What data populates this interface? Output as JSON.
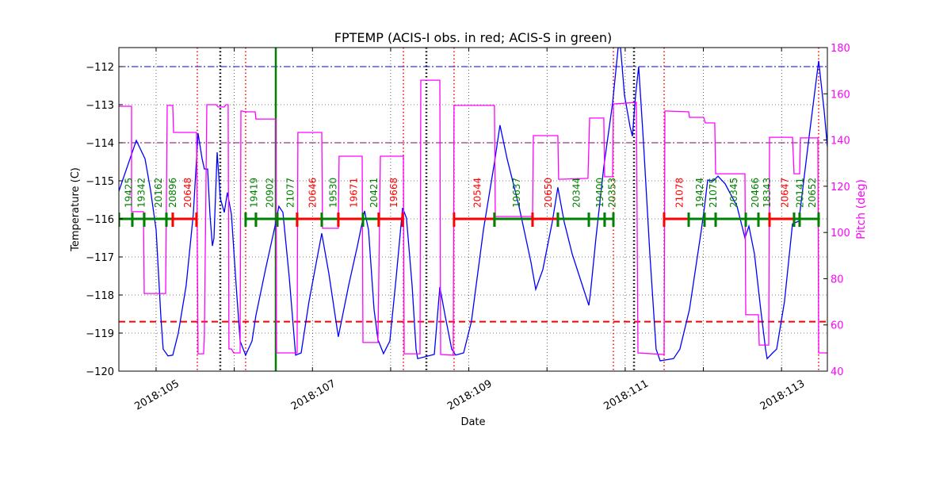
{
  "chart_data": {
    "type": "line",
    "title": "FPTEMP (ACIS-I obs. in red; ACIS-S in green)",
    "xlabel": "Date",
    "ylabel": "Temperature (C)",
    "y2label": "Pitch (deg)",
    "xlim": [
      104.524,
      113.586
    ],
    "ylim": [
      -120,
      -111.5
    ],
    "y2lim": [
      40,
      180
    ],
    "grid": true,
    "x_ticks": [
      105,
      106,
      107,
      108,
      109,
      110,
      111,
      112,
      113
    ],
    "x_tick_labels": [
      {
        "value": 105,
        "label": "2018:105"
      },
      {
        "value": 107,
        "label": "2018:107"
      },
      {
        "value": 109,
        "label": "2018:109"
      },
      {
        "value": 111,
        "label": "2018:111"
      },
      {
        "value": 113,
        "label": "2018:113"
      }
    ],
    "y_ticks": [
      "-120",
      "-119",
      "-118",
      "-117",
      "-116",
      "-115",
      "-114",
      "-113",
      "-112"
    ],
    "y2_ticks": [
      "40",
      "60",
      "80",
      "100",
      "120",
      "140",
      "160",
      "180"
    ],
    "colors": {
      "temperature": "#0000ff",
      "pitch": "#ff00ff",
      "acis_i": "#ff0000",
      "acis_s": "#008000",
      "y2_axis": "#ff00ff"
    },
    "hlines": [
      {
        "y": -112,
        "color": "#0000ff",
        "style": "dashdot"
      },
      {
        "y": -114,
        "color": "#800080",
        "style": "dashdot"
      },
      {
        "y": -118.7,
        "color": "#ff0000",
        "style": "dashed"
      }
    ],
    "vlines": [
      {
        "x": 105.527,
        "color": "#ff0000",
        "style": "dotted"
      },
      {
        "x": 106.145,
        "color": "#ff0000",
        "style": "dotted"
      },
      {
        "x": 108.163,
        "color": "#ff0000",
        "style": "dotted"
      },
      {
        "x": 108.811,
        "color": "#ff0000",
        "style": "dotted"
      },
      {
        "x": 110.849,
        "color": "#ff0000",
        "style": "dotted"
      },
      {
        "x": 111.498,
        "color": "#ff0000",
        "style": "dotted"
      },
      {
        "x": 113.474,
        "color": "#ff0000",
        "style": "dotted"
      },
      {
        "x": 105.821,
        "color": "#000000",
        "style": "dotted"
      },
      {
        "x": 108.457,
        "color": "#000000",
        "style": "dotted"
      },
      {
        "x": 111.113,
        "color": "#000000",
        "style": "dotted"
      },
      {
        "x": 106.531,
        "color": "#008000",
        "style": "solid"
      }
    ],
    "obs_level": -116,
    "observations": [
      {
        "obsid": "19425",
        "inst": "ACIS-S",
        "start": 104.524,
        "stop": 104.696
      },
      {
        "obsid": "19342",
        "inst": "ACIS-S",
        "start": 104.696,
        "stop": 104.848
      },
      {
        "obsid": "20162",
        "inst": "ACIS-S",
        "start": 104.848,
        "stop": 105.132
      },
      {
        "obsid": "20896",
        "inst": "ACIS-S",
        "start": 105.132,
        "stop": 105.213
      },
      {
        "obsid": "20648",
        "inst": "ACIS-I",
        "start": 105.213,
        "stop": 105.517
      },
      {
        "obsid": "19419",
        "inst": "ACIS-S",
        "start": 106.145,
        "stop": 106.277
      },
      {
        "obsid": "20902",
        "inst": "ACIS-S",
        "start": 106.277,
        "stop": 106.551
      },
      {
        "obsid": "21077",
        "inst": "ACIS-S",
        "start": 106.551,
        "stop": 106.804
      },
      {
        "obsid": "20646",
        "inst": "ACIS-I",
        "start": 106.804,
        "stop": 107.119
      },
      {
        "obsid": "19530",
        "inst": "ACIS-S",
        "start": 107.119,
        "stop": 107.331
      },
      {
        "obsid": "19671",
        "inst": "ACIS-I",
        "start": 107.331,
        "stop": 107.646
      },
      {
        "obsid": "20421",
        "inst": "ACIS-S",
        "start": 107.646,
        "stop": 107.848
      },
      {
        "obsid": "19668",
        "inst": "ACIS-I",
        "start": 107.848,
        "stop": 108.153
      },
      {
        "obsid": "20544",
        "inst": "ACIS-I",
        "start": 108.811,
        "stop": 109.328
      },
      {
        "obsid": "19637",
        "inst": "ACIS-S",
        "start": 109.328,
        "stop": 109.815
      },
      {
        "obsid": "20650",
        "inst": "ACIS-I",
        "start": 109.815,
        "stop": 110.139
      },
      {
        "obsid": "20344",
        "inst": "ACIS-S",
        "start": 110.139,
        "stop": 110.535
      },
      {
        "obsid": "19400",
        "inst": "ACIS-S",
        "start": 110.535,
        "stop": 110.737
      },
      {
        "obsid": "20353",
        "inst": "ACIS-S",
        "start": 110.737,
        "stop": 110.849
      },
      {
        "obsid": "21078",
        "inst": "ACIS-I",
        "start": 111.498,
        "stop": 111.812
      },
      {
        "obsid": "19424",
        "inst": "ACIS-S",
        "start": 111.812,
        "stop": 112.015
      },
      {
        "obsid": "21075",
        "inst": "ACIS-S",
        "start": 112.015,
        "stop": 112.157
      },
      {
        "obsid": "20345",
        "inst": "ACIS-S",
        "start": 112.157,
        "stop": 112.542
      },
      {
        "obsid": "20466",
        "inst": "ACIS-S",
        "start": 112.542,
        "stop": 112.704
      },
      {
        "obsid": "18343",
        "inst": "ACIS-S",
        "start": 112.704,
        "stop": 112.846
      },
      {
        "obsid": "20647",
        "inst": "ACIS-I",
        "start": 112.846,
        "stop": 113.16
      },
      {
        "obsid": "20141",
        "inst": "ACIS-S",
        "start": 113.16,
        "stop": 113.231
      },
      {
        "obsid": "20652",
        "inst": "ACIS-S",
        "start": 113.231,
        "stop": 113.474
      }
    ],
    "series": [
      {
        "axis": "left",
        "color": "#0000ff",
        "points": [
          [
            104.524,
            -115.27
          ],
          [
            104.747,
            -113.94
          ],
          [
            104.858,
            -114.42
          ],
          [
            104.929,
            -115.25
          ],
          [
            105.0,
            -116.29
          ],
          [
            105.061,
            -118.58
          ],
          [
            105.091,
            -119.42
          ],
          [
            105.152,
            -119.6
          ],
          [
            105.213,
            -119.58
          ],
          [
            105.284,
            -119.0
          ],
          [
            105.385,
            -117.75
          ],
          [
            105.476,
            -115.88
          ],
          [
            105.537,
            -113.75
          ],
          [
            105.588,
            -114.42
          ],
          [
            105.618,
            -114.69
          ],
          [
            105.659,
            -114.69
          ],
          [
            105.689,
            -115.88
          ],
          [
            105.72,
            -116.71
          ],
          [
            105.74,
            -116.5
          ],
          [
            105.781,
            -114.25
          ],
          [
            105.821,
            -115.46
          ],
          [
            105.872,
            -115.83
          ],
          [
            105.912,
            -115.31
          ],
          [
            105.963,
            -115.88
          ],
          [
            106.024,
            -117.75
          ],
          [
            106.075,
            -119.21
          ],
          [
            106.145,
            -119.58
          ],
          [
            106.227,
            -119.21
          ],
          [
            106.277,
            -118.54
          ],
          [
            106.399,
            -117.33
          ],
          [
            106.521,
            -116.19
          ],
          [
            106.571,
            -115.67
          ],
          [
            106.622,
            -115.83
          ],
          [
            106.703,
            -117.54
          ],
          [
            106.784,
            -119.58
          ],
          [
            106.855,
            -119.52
          ],
          [
            106.956,
            -118.17
          ],
          [
            107.119,
            -116.38
          ],
          [
            107.21,
            -117.44
          ],
          [
            107.331,
            -119.1
          ],
          [
            107.463,
            -117.75
          ],
          [
            107.575,
            -116.71
          ],
          [
            107.666,
            -115.79
          ],
          [
            107.717,
            -116.29
          ],
          [
            107.788,
            -118.38
          ],
          [
            107.838,
            -119.17
          ],
          [
            107.909,
            -119.54
          ],
          [
            107.99,
            -119.21
          ],
          [
            108.071,
            -117.54
          ],
          [
            108.153,
            -115.71
          ],
          [
            108.203,
            -115.98
          ],
          [
            108.274,
            -117.75
          ],
          [
            108.325,
            -119.42
          ],
          [
            108.345,
            -119.67
          ],
          [
            108.558,
            -119.56
          ],
          [
            108.629,
            -117.79
          ],
          [
            108.7,
            -118.58
          ],
          [
            108.781,
            -119.42
          ],
          [
            108.832,
            -119.58
          ],
          [
            108.933,
            -119.52
          ],
          [
            109.034,
            -118.69
          ],
          [
            109.187,
            -116.29
          ],
          [
            109.328,
            -114.52
          ],
          [
            109.399,
            -113.54
          ],
          [
            109.49,
            -114.42
          ],
          [
            109.642,
            -115.67
          ],
          [
            109.794,
            -117.13
          ],
          [
            109.856,
            -117.85
          ],
          [
            109.947,
            -117.33
          ],
          [
            110.068,
            -116.08
          ],
          [
            110.139,
            -115.17
          ],
          [
            110.22,
            -116.08
          ],
          [
            110.322,
            -116.92
          ],
          [
            110.453,
            -117.75
          ],
          [
            110.535,
            -118.27
          ],
          [
            110.555,
            -117.96
          ],
          [
            110.626,
            -116.5
          ],
          [
            110.727,
            -114.63
          ],
          [
            110.839,
            -112.96
          ],
          [
            110.91,
            -111.5
          ],
          [
            110.94,
            -111.5
          ],
          [
            110.991,
            -112.75
          ],
          [
            111.062,
            -113.58
          ],
          [
            111.092,
            -113.83
          ],
          [
            111.133,
            -112.75
          ],
          [
            111.173,
            -112.0
          ],
          [
            111.234,
            -114.0
          ],
          [
            111.315,
            -116.92
          ],
          [
            111.396,
            -119.42
          ],
          [
            111.447,
            -119.73
          ],
          [
            111.619,
            -119.67
          ],
          [
            111.7,
            -119.42
          ],
          [
            111.822,
            -118.38
          ],
          [
            111.974,
            -116.29
          ],
          [
            112.015,
            -115.67
          ],
          [
            112.055,
            -114.98
          ],
          [
            112.126,
            -115.0
          ],
          [
            112.187,
            -114.88
          ],
          [
            112.278,
            -115.08
          ],
          [
            112.43,
            -115.67
          ],
          [
            112.532,
            -116.5
          ],
          [
            112.582,
            -116.19
          ],
          [
            112.653,
            -116.92
          ],
          [
            112.734,
            -118.38
          ],
          [
            112.795,
            -119.42
          ],
          [
            112.816,
            -119.67
          ],
          [
            112.887,
            -119.52
          ],
          [
            112.937,
            -119.42
          ],
          [
            113.038,
            -118.17
          ],
          [
            113.14,
            -116.13
          ],
          [
            113.221,
            -116.06
          ],
          [
            113.343,
            -114.0
          ],
          [
            113.474,
            -111.85
          ],
          [
            113.545,
            -113.17
          ],
          [
            113.586,
            -114.1
          ]
        ]
      },
      {
        "axis": "right",
        "color": "#ff00ff",
        "points": [
          [
            104.524,
            154.6
          ],
          [
            104.686,
            154.6
          ],
          [
            104.686,
            109.0
          ],
          [
            104.838,
            109.0
          ],
          [
            104.848,
            73.6
          ],
          [
            105.122,
            73.6
          ],
          [
            105.142,
            155.0
          ],
          [
            105.213,
            155.0
          ],
          [
            105.223,
            143.3
          ],
          [
            105.517,
            143.3
          ],
          [
            105.537,
            47.5
          ],
          [
            105.608,
            47.5
          ],
          [
            105.618,
            55.4
          ],
          [
            105.649,
            155.3
          ],
          [
            105.77,
            155.3
          ],
          [
            105.791,
            154.3
          ],
          [
            105.872,
            154.3
          ],
          [
            105.892,
            155.3
          ],
          [
            105.922,
            155.3
          ],
          [
            105.932,
            49.6
          ],
          [
            105.963,
            49.6
          ],
          [
            105.993,
            47.9
          ],
          [
            106.075,
            47.9
          ],
          [
            106.085,
            152.6
          ],
          [
            106.156,
            152.2
          ],
          [
            106.267,
            152.2
          ],
          [
            106.277,
            149.1
          ],
          [
            106.531,
            149.1
          ],
          [
            106.541,
            47.9
          ],
          [
            106.804,
            47.9
          ],
          [
            106.814,
            143.3
          ],
          [
            107.119,
            143.3
          ],
          [
            107.129,
            101.8
          ],
          [
            107.331,
            101.8
          ],
          [
            107.341,
            133.0
          ],
          [
            107.636,
            133.0
          ],
          [
            107.646,
            52.4
          ],
          [
            107.838,
            52.4
          ],
          [
            107.869,
            133.0
          ],
          [
            108.163,
            133.0
          ],
          [
            108.173,
            47.5
          ],
          [
            108.376,
            47.5
          ],
          [
            108.386,
            165.9
          ],
          [
            108.629,
            165.9
          ],
          [
            108.639,
            47.2
          ],
          [
            108.801,
            46.9
          ],
          [
            108.811,
            155.0
          ],
          [
            109.328,
            155.0
          ],
          [
            109.339,
            106.9
          ],
          [
            109.815,
            106.9
          ],
          [
            109.825,
            141.9
          ],
          [
            110.139,
            141.9
          ],
          [
            110.149,
            123.0
          ],
          [
            110.524,
            123.4
          ],
          [
            110.545,
            149.5
          ],
          [
            110.727,
            149.5
          ],
          [
            110.737,
            124.1
          ],
          [
            110.839,
            124.1
          ],
          [
            110.849,
            155.6
          ],
          [
            111.143,
            156.3
          ],
          [
            111.163,
            47.9
          ],
          [
            111.498,
            47.2
          ],
          [
            111.508,
            152.6
          ],
          [
            111.812,
            152.2
          ],
          [
            111.822,
            149.8
          ],
          [
            112.004,
            149.8
          ],
          [
            112.025,
            147.4
          ],
          [
            112.146,
            147.4
          ],
          [
            112.157,
            125.4
          ],
          [
            112.532,
            125.4
          ],
          [
            112.542,
            64.4
          ],
          [
            112.704,
            64.4
          ],
          [
            112.714,
            51.3
          ],
          [
            112.836,
            51.3
          ],
          [
            112.846,
            141.2
          ],
          [
            113.14,
            141.2
          ],
          [
            113.16,
            125.4
          ],
          [
            113.231,
            125.4
          ],
          [
            113.241,
            140.9
          ],
          [
            113.464,
            140.9
          ],
          [
            113.474,
            47.9
          ],
          [
            113.586,
            47.9
          ]
        ]
      }
    ]
  }
}
